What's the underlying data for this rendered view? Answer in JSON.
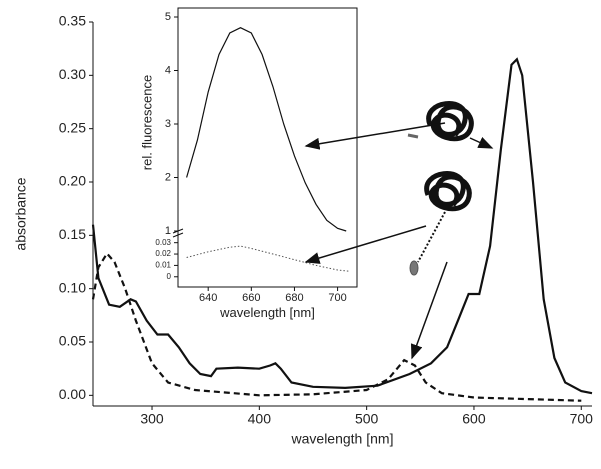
{
  "chart_data": [
    {
      "type": "line",
      "xlabel": "wavelength [nm]",
      "ylabel": "absorbance",
      "xlim": [
        245,
        710
      ],
      "ylim": [
        -0.01,
        0.35
      ],
      "xticks": [
        300,
        400,
        500,
        600,
        700
      ],
      "yticks": [
        {
          "value": 0,
          "label": "0.00"
        },
        0.05,
        {
          "value": 0.1,
          "label": "0.10"
        },
        0.15,
        {
          "value": 0.2,
          "label": "0.20"
        },
        0.25,
        {
          "value": 0.3,
          "label": "0.30"
        },
        0.35
      ],
      "series": [
        {
          "color": "#111111",
          "style": "solid",
          "x": [
            245,
            250,
            260,
            270,
            280,
            285,
            295,
            305,
            315,
            325,
            335,
            345,
            355,
            360,
            380,
            400,
            410,
            415,
            420,
            430,
            450,
            480,
            510,
            540,
            560,
            575,
            585,
            595,
            605,
            615,
            625,
            635,
            640,
            645,
            655,
            665,
            675,
            685,
            700,
            710
          ],
          "values": [
            0.16,
            0.11,
            0.085,
            0.083,
            0.09,
            0.088,
            0.07,
            0.057,
            0.057,
            0.045,
            0.03,
            0.02,
            0.018,
            0.025,
            0.026,
            0.025,
            0.028,
            0.03,
            0.025,
            0.012,
            0.008,
            0.007,
            0.009,
            0.02,
            0.03,
            0.045,
            0.07,
            0.095,
            0.095,
            0.14,
            0.23,
            0.31,
            0.315,
            0.3,
            0.2,
            0.09,
            0.035,
            0.012,
            0.004,
            0.002
          ]
        },
        {
          "color": "#111111",
          "style": "dashed",
          "x": [
            245,
            250,
            258,
            265,
            275,
            285,
            300,
            315,
            340,
            400,
            450,
            500,
            520,
            535,
            545,
            555,
            570,
            600,
            700
          ],
          "values": [
            0.09,
            0.12,
            0.133,
            0.125,
            0.1,
            0.07,
            0.03,
            0.012,
            0.005,
            0,
            0.001,
            0.005,
            0.015,
            0.033,
            0.028,
            0.012,
            0.002,
            -0.002,
            -0.005
          ]
        }
      ]
    },
    {
      "type": "line",
      "xlabel": "wavelength [nm]",
      "ylabel": "rel. fluorescence",
      "xlim": [
        626,
        709
      ],
      "ylim": [
        1,
        5
      ],
      "y2lim": [
        -0.009,
        0.035
      ],
      "xticks": [
        640,
        660,
        680,
        700
      ],
      "yticks": [
        1,
        2,
        3,
        4,
        5
      ],
      "y2ticks": [
        0,
        0.01,
        0.02,
        0.03
      ],
      "series": [
        {
          "color": "#111111",
          "style": "solid",
          "x": [
            630,
            635,
            640,
            645,
            650,
            655,
            660,
            665,
            670,
            675,
            680,
            685,
            690,
            695,
            700,
            704
          ],
          "values": [
            2.0,
            2.7,
            3.6,
            4.3,
            4.7,
            4.8,
            4.7,
            4.3,
            3.7,
            3.0,
            2.4,
            1.9,
            1.5,
            1.2,
            1.05,
            1.0
          ]
        },
        {
          "color": "#555555",
          "style": "dotted",
          "axis": "y2",
          "x": [
            630,
            640,
            650,
            655,
            660,
            670,
            680,
            690,
            700,
            705
          ],
          "values": [
            0.017,
            0.022,
            0.026,
            0.027,
            0.025,
            0.02,
            0.015,
            0.01,
            0.006,
            0.005
          ]
        }
      ]
    }
  ]
}
